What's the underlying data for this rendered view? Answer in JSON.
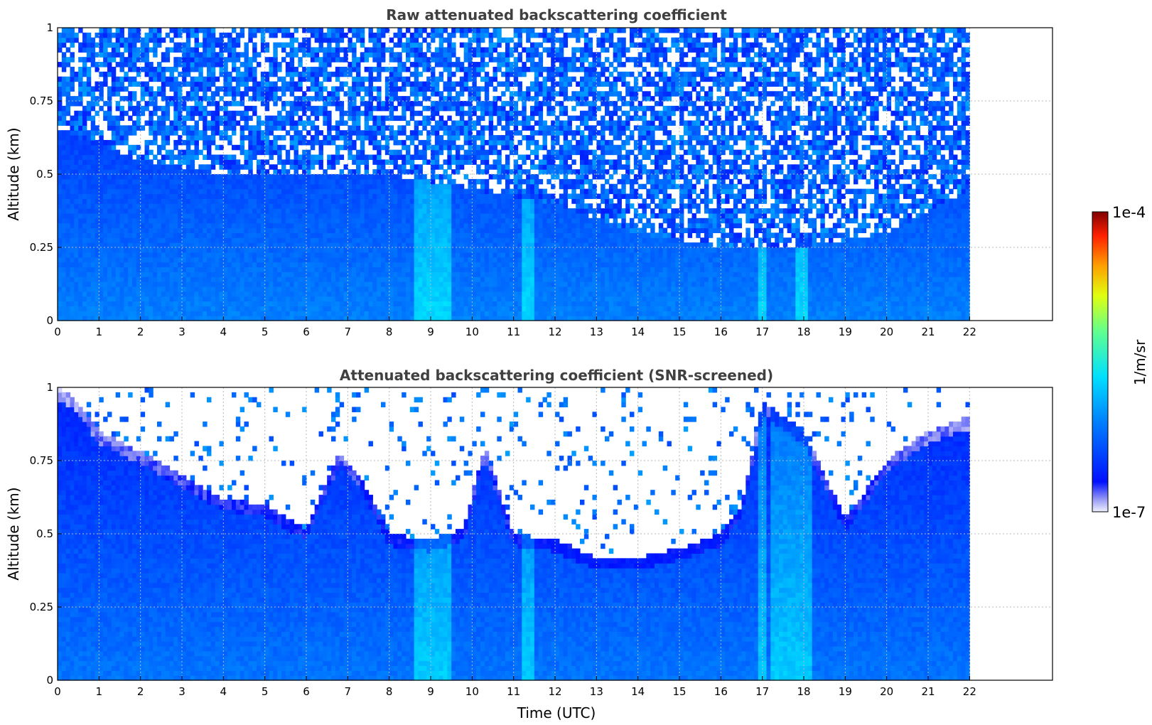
{
  "colorbar": {
    "max_label": "1e-4",
    "min_label": "1e-7",
    "unit_label": "1/m/sr",
    "colormap": "jet",
    "scale": "log",
    "range": [
      1e-07,
      0.0001
    ]
  },
  "chart_data": [
    {
      "type": "heatmap",
      "title": "Raw attenuated backscattering coefficient",
      "xlabel": "",
      "ylabel": "Altitude (km)",
      "xlim": [
        0,
        24
      ],
      "ylim": [
        0,
        1
      ],
      "xticks": [
        0,
        1,
        2,
        3,
        4,
        5,
        6,
        7,
        8,
        9,
        10,
        11,
        12,
        13,
        14,
        15,
        16,
        17,
        18,
        19,
        20,
        21,
        22
      ],
      "xtick_labels": [
        "0",
        "1",
        "2",
        "3",
        "4",
        "5",
        "6",
        "7",
        "8",
        "9",
        "10",
        "11",
        "12",
        "13",
        "14",
        "15",
        "16",
        "17",
        "18",
        "19",
        "20",
        "21",
        "22"
      ],
      "yticks": [
        0,
        0.25,
        0.5,
        0.75,
        1
      ],
      "ytick_labels": [
        "0",
        "0.25",
        "0.5",
        "0.75",
        "1"
      ],
      "grid": true,
      "data_time_range": [
        0,
        22
      ],
      "noise_threshold_altitude_km": [
        [
          0,
          0.65
        ],
        [
          2,
          0.55
        ],
        [
          4,
          0.5
        ],
        [
          6,
          0.5
        ],
        [
          8,
          0.5
        ],
        [
          10,
          0.45
        ],
        [
          12,
          0.4
        ],
        [
          14,
          0.3
        ],
        [
          16,
          0.25
        ],
        [
          18,
          0.25
        ],
        [
          20,
          0.3
        ],
        [
          22,
          0.45
        ]
      ],
      "bright_bands_utc": [
        [
          8.6,
          9.5
        ],
        [
          11.2,
          11.5
        ],
        [
          16.95,
          17.1
        ],
        [
          17.8,
          18.1
        ]
      ]
    },
    {
      "type": "heatmap",
      "title": "Attenuated backscattering coefficient (SNR-screened)",
      "xlabel": "Time (UTC)",
      "ylabel": "Altitude (km)",
      "xlim": [
        0,
        24
      ],
      "ylim": [
        0,
        1
      ],
      "xticks": [
        0,
        1,
        2,
        3,
        4,
        5,
        6,
        7,
        8,
        9,
        10,
        11,
        12,
        13,
        14,
        15,
        16,
        17,
        18,
        19,
        20,
        21,
        22
      ],
      "xtick_labels": [
        "0",
        "1",
        "2",
        "3",
        "4",
        "5",
        "6",
        "7",
        "8",
        "9",
        "10",
        "11",
        "12",
        "13",
        "14",
        "15",
        "16",
        "17",
        "18",
        "19",
        "20",
        "21",
        "22"
      ],
      "yticks": [
        0,
        0.25,
        0.5,
        0.75,
        1
      ],
      "ytick_labels": [
        "0",
        "0.25",
        "0.5",
        "0.75",
        "1"
      ],
      "grid": true,
      "data_time_range": [
        0,
        22
      ],
      "screened_top_altitude_km": [
        [
          0,
          1
        ],
        [
          0.5,
          0.95
        ],
        [
          1,
          0.85
        ],
        [
          2,
          0.78
        ],
        [
          3,
          0.7
        ],
        [
          4,
          0.62
        ],
        [
          5,
          0.6
        ],
        [
          6,
          0.52
        ],
        [
          6.8,
          0.78
        ],
        [
          7.3,
          0.7
        ],
        [
          8,
          0.5
        ],
        [
          9,
          0.48
        ],
        [
          9.8,
          0.52
        ],
        [
          10.3,
          0.8
        ],
        [
          11,
          0.5
        ],
        [
          12,
          0.48
        ],
        [
          13,
          0.42
        ],
        [
          14,
          0.42
        ],
        [
          15,
          0.45
        ],
        [
          16,
          0.5
        ],
        [
          16.5,
          0.6
        ],
        [
          17,
          0.95
        ],
        [
          18,
          0.85
        ],
        [
          19,
          0.55
        ],
        [
          20,
          0.75
        ],
        [
          21,
          0.85
        ],
        [
          22,
          0.9
        ]
      ],
      "bright_bands_utc": [
        [
          8.6,
          9.5
        ],
        [
          11.2,
          11.5
        ],
        [
          16.95,
          17.1
        ],
        [
          17.2,
          18.2
        ]
      ]
    }
  ]
}
